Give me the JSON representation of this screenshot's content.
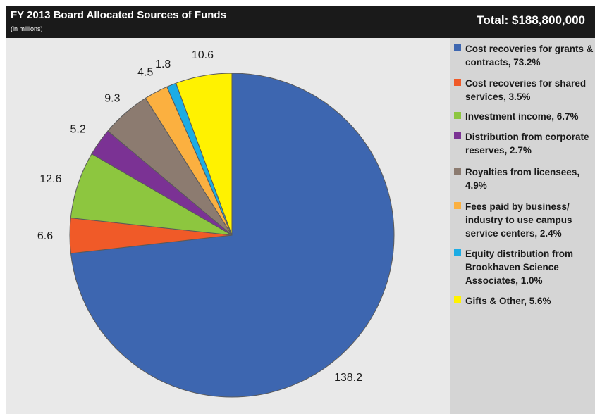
{
  "header": {
    "title": "FY 2013 Board Allocated Sources of Funds",
    "subtitle": "(in millions)",
    "total": "Total: $188,800,000"
  },
  "chart_data": {
    "type": "pie",
    "title": "FY 2013 Board Allocated Sources of Funds",
    "subtitle": "(in millions)",
    "total_label": "Total: $188,800,000",
    "legend_position": "right",
    "slices": [
      {
        "legend": "Cost recoveries for grants & contracts, 73.2%",
        "value": 138.2,
        "label": "138.2",
        "color": "#3d66b0"
      },
      {
        "legend": "Cost recoveries for shared services, 3.5%",
        "value": 6.6,
        "label": "6.6",
        "color": "#f05a28"
      },
      {
        "legend": "Investment income, 6.7%",
        "value": 12.6,
        "label": "12.6",
        "color": "#8dc63f"
      },
      {
        "legend": "Distribution from corporate reserves, 2.7%",
        "value": 5.2,
        "label": "5.2",
        "color": "#7b3294"
      },
      {
        "legend": "Royalties from licensees, 4.9%",
        "value": 9.3,
        "label": "9.3",
        "color": "#8c7b70"
      },
      {
        "legend": "Fees paid by business/ industry to use campus service centers, 2.4%",
        "value": 4.5,
        "label": "4.5",
        "color": "#fbb040"
      },
      {
        "legend": "Equity distribution from Brookhaven Science Associates, 1.0%",
        "value": 1.8,
        "label": "1.8",
        "color": "#1cace4"
      },
      {
        "legend": "Gifts & Other, 5.6%",
        "value": 10.6,
        "label": "10.6",
        "color": "#fff200"
      }
    ]
  }
}
